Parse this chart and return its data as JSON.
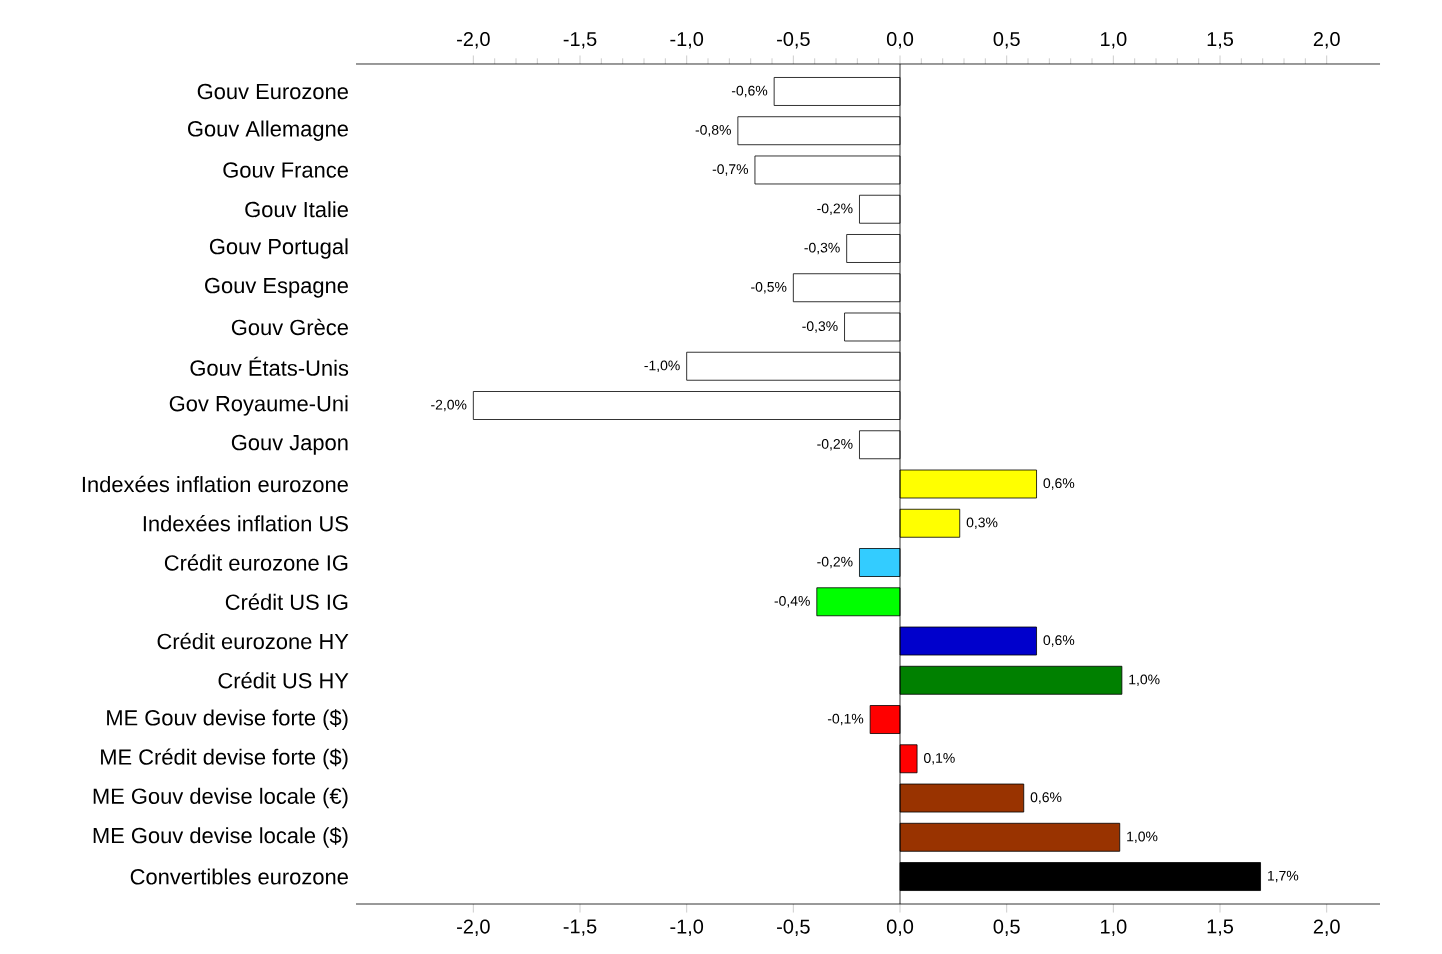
{
  "chart_data": {
    "type": "bar",
    "orientation": "horizontal",
    "categories": [
      "Gouv Eurozone",
      "Gouv Allemagne",
      "Gouv France",
      "Gouv Italie",
      "Gouv Portugal",
      "Gouv Espagne",
      "Gouv Grèce",
      "Gouv États-Unis",
      "Gov Royaume-Uni",
      "Gouv Japon",
      "Indexées inflation eurozone",
      "Indexées inflation US",
      "Crédit eurozone IG",
      "Crédit US IG",
      "Crédit eurozone HY",
      "Crédit US HY",
      "ME Gouv devise forte ($)",
      "ME Crédit devise forte ($)",
      "ME Gouv devise locale (€)",
      "ME Gouv devise locale ($)",
      "Convertibles eurozone"
    ],
    "values": [
      -0.59,
      -0.76,
      -0.68,
      -0.19,
      -0.25,
      -0.5,
      -0.26,
      -1.0,
      -2.0,
      -0.19,
      0.64,
      0.28,
      -0.19,
      -0.39,
      0.64,
      1.04,
      -0.14,
      0.08,
      0.58,
      1.03,
      1.69
    ],
    "value_labels": [
      "-0,6%",
      "-0,8%",
      "-0,7%",
      "-0,2%",
      "-0,3%",
      "-0,5%",
      "-0,3%",
      "-1,0%",
      "-2,0%",
      "-0,2%",
      "0,6%",
      "0,3%",
      "-0,2%",
      "-0,4%",
      "0,6%",
      "1,0%",
      "-0,1%",
      "0,1%",
      "0,6%",
      "1,0%",
      "1,7%"
    ],
    "colors": [
      "#ffffff",
      "#ffffff",
      "#ffffff",
      "#ffffff",
      "#ffffff",
      "#ffffff",
      "#ffffff",
      "#ffffff",
      "#ffffff",
      "#ffffff",
      "#ffff00",
      "#ffff00",
      "#33ccff",
      "#00ff00",
      "#0000cc",
      "#008000",
      "#ff0000",
      "#ff0000",
      "#993300",
      "#993300",
      "#000000"
    ],
    "xlim": [
      -2.55,
      2.25
    ],
    "xticks": [
      {
        "value": -2.0,
        "label": "-2,0"
      },
      {
        "value": -1.5,
        "label": "-1,5"
      },
      {
        "value": -1.0,
        "label": "-1,0"
      },
      {
        "value": -0.5,
        "label": "-0,5"
      },
      {
        "value": 0.0,
        "label": "0,0"
      },
      {
        "value": 0.5,
        "label": "0,5"
      },
      {
        "value": 1.0,
        "label": "1,0"
      },
      {
        "value": 1.5,
        "label": "1,5"
      },
      {
        "value": 2.0,
        "label": "2,0"
      }
    ],
    "x2lim": [
      -2.55,
      2.25
    ],
    "x2ticks": [
      {
        "value": -2.0,
        "label": "-2,0"
      },
      {
        "value": -1.5,
        "label": "-1,5"
      },
      {
        "value": -1.0,
        "label": "-1,0"
      },
      {
        "value": -0.5,
        "label": "-0,5"
      },
      {
        "value": 0.0,
        "label": "0,0"
      },
      {
        "value": 0.5,
        "label": "0,5"
      },
      {
        "value": 1.0,
        "label": "1,0"
      },
      {
        "value": 1.5,
        "label": "1,5"
      },
      {
        "value": 2.0,
        "label": "2,0"
      }
    ]
  }
}
